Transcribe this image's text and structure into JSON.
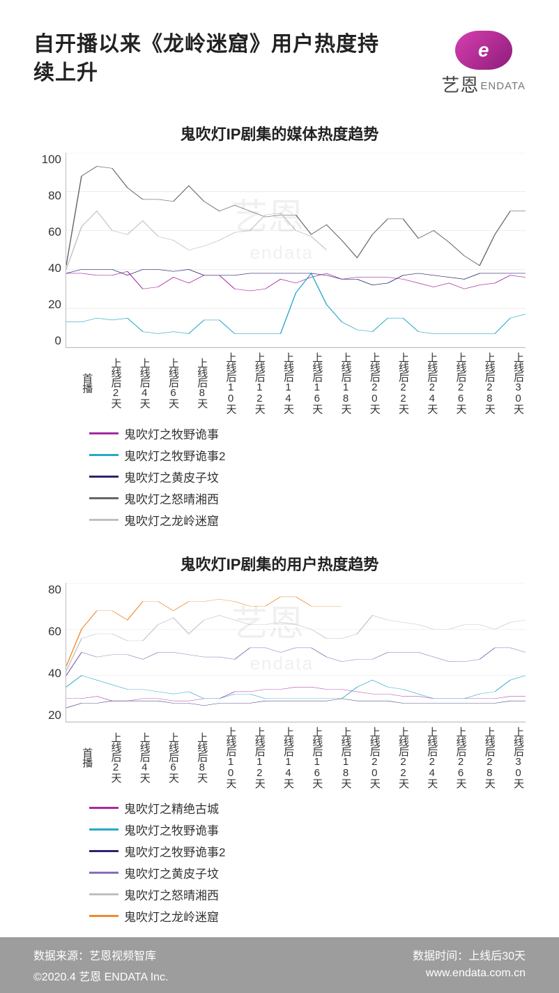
{
  "header": {
    "title": "自开播以来《龙岭迷窟》用户热度持续上升",
    "logo": {
      "mark": "e",
      "zh": "艺恩",
      "en": "ENDATA"
    }
  },
  "xaxis": {
    "labels": [
      "首播",
      "上线后2天",
      "上线后4天",
      "上线后6天",
      "上线后8天",
      "上线后10天",
      "上线后12天",
      "上线后14天",
      "上线后16天",
      "上线后18天",
      "上线后20天",
      "上线后22天",
      "上线后24天",
      "上线后26天",
      "上线后28天",
      "上线后30天"
    ]
  },
  "chart1": {
    "title": "鬼吹灯IP剧集的媒体热度趋势",
    "ylim": [
      0,
      100
    ],
    "ytick_step": 20,
    "grid_color": "#dddddd",
    "axis_color": "#bbbbbb",
    "background": "#ffffff",
    "line_width": 2.2,
    "title_fontsize": 22,
    "tick_fontsize": 17,
    "watermark": {
      "zh": "艺恩",
      "en": "endata"
    },
    "series": [
      {
        "name": "鬼吹灯之牧野诡事",
        "color": "#a72aa0",
        "values": [
          38,
          38,
          37,
          37,
          39,
          30,
          31,
          36,
          33,
          37,
          37,
          30,
          29,
          30,
          35,
          33,
          36,
          38,
          35,
          36,
          36,
          36,
          35,
          33,
          31,
          33,
          30,
          32,
          33,
          37,
          36
        ]
      },
      {
        "name": "鬼吹灯之牧野诡事2",
        "color": "#29a7c9",
        "values": [
          13,
          13,
          15,
          14,
          15,
          8,
          7,
          8,
          7,
          14,
          14,
          7,
          7,
          7,
          7,
          28,
          38,
          22,
          13,
          9,
          8,
          15,
          15,
          8,
          7,
          7,
          7,
          7,
          7,
          15,
          17
        ]
      },
      {
        "name": "鬼吹灯之黄皮子坟",
        "color": "#2a2470",
        "values": [
          38,
          40,
          40,
          40,
          37,
          40,
          40,
          39,
          40,
          37,
          37,
          37,
          38,
          38,
          38,
          38,
          38,
          37,
          35,
          35,
          32,
          33,
          37,
          38,
          37,
          36,
          35,
          38,
          38,
          38,
          38
        ]
      },
      {
        "name": "鬼吹灯之怒晴湘西",
        "color": "#666666",
        "values": [
          42,
          88,
          93,
          92,
          82,
          76,
          76,
          75,
          83,
          75,
          70,
          73,
          70,
          67,
          68,
          68,
          58,
          63,
          55,
          46,
          58,
          66,
          66,
          56,
          60,
          54,
          47,
          42,
          58,
          70,
          70
        ]
      },
      {
        "name": "鬼吹灯之龙岭迷窟",
        "color": "#c0c0c0",
        "values": [
          40,
          62,
          70,
          60,
          58,
          65,
          57,
          55,
          50,
          52,
          55,
          59,
          60,
          68,
          69,
          60,
          57,
          50
        ]
      }
    ]
  },
  "chart2": {
    "title": "鬼吹灯IP剧集的用户热度趋势",
    "ylim": [
      20,
      80
    ],
    "ytick_step": 20,
    "grid_color": "#dddddd",
    "axis_color": "#bbbbbb",
    "background": "#ffffff",
    "line_width": 2.2,
    "title_fontsize": 22,
    "tick_fontsize": 17,
    "watermark": {
      "zh": "艺恩",
      "en": "endata"
    },
    "series": [
      {
        "name": "鬼吹灯之精绝古城",
        "color": "#a72aa0",
        "values": [
          30,
          30,
          31,
          29,
          29,
          30,
          30,
          29,
          29,
          30,
          30,
          33,
          33,
          34,
          34,
          35,
          35,
          34,
          34,
          33,
          32,
          32,
          31,
          31,
          30,
          30,
          30,
          30,
          30,
          31,
          31
        ]
      },
      {
        "name": "鬼吹灯之牧野诡事",
        "color": "#29a7c9",
        "values": [
          35,
          40,
          38,
          36,
          34,
          34,
          33,
          32,
          33,
          30,
          30,
          32,
          32,
          30,
          30,
          30,
          30,
          30,
          30,
          35,
          38,
          35,
          34,
          32,
          30,
          30,
          30,
          32,
          33,
          38,
          40
        ]
      },
      {
        "name": "鬼吹灯之牧野诡事2",
        "color": "#2a2470",
        "values": [
          26,
          28,
          28,
          29,
          29,
          29,
          29,
          28,
          28,
          27,
          28,
          28,
          28,
          29,
          29,
          29,
          29,
          29,
          30,
          29,
          29,
          29,
          28,
          28,
          28,
          28,
          28,
          28,
          28,
          29,
          29
        ]
      },
      {
        "name": "鬼吹灯之黄皮子坟",
        "color": "#8a6fb3",
        "values": [
          40,
          50,
          48,
          49,
          49,
          47,
          50,
          50,
          49,
          48,
          48,
          47,
          52,
          52,
          50,
          52,
          52,
          48,
          46,
          47,
          47,
          50,
          50,
          50,
          48,
          46,
          46,
          47,
          52,
          52,
          50
        ]
      },
      {
        "name": "鬼吹灯之怒晴湘西",
        "color": "#c0c0c0",
        "values": [
          42,
          56,
          58,
          58,
          55,
          55,
          62,
          65,
          58,
          64,
          66,
          64,
          62,
          62,
          63,
          62,
          60,
          56,
          56,
          58,
          66,
          64,
          63,
          62,
          60,
          60,
          62,
          62,
          60,
          63,
          64
        ]
      },
      {
        "name": "鬼吹灯之龙岭迷窟",
        "color": "#ed8b2e",
        "values": [
          44,
          60,
          68,
          68,
          64,
          72,
          72,
          68,
          72,
          72,
          73,
          72,
          70,
          70,
          74,
          74,
          70,
          70,
          70
        ]
      }
    ]
  },
  "footer": {
    "source_label": "数据来源",
    "source": "：艺恩视频智库",
    "time_label": "数据时间：",
    "time": "上线后30天",
    "copyright": "©2020.4  艺恩 ENDATA Inc.",
    "url": "www.endata.com.cn"
  }
}
